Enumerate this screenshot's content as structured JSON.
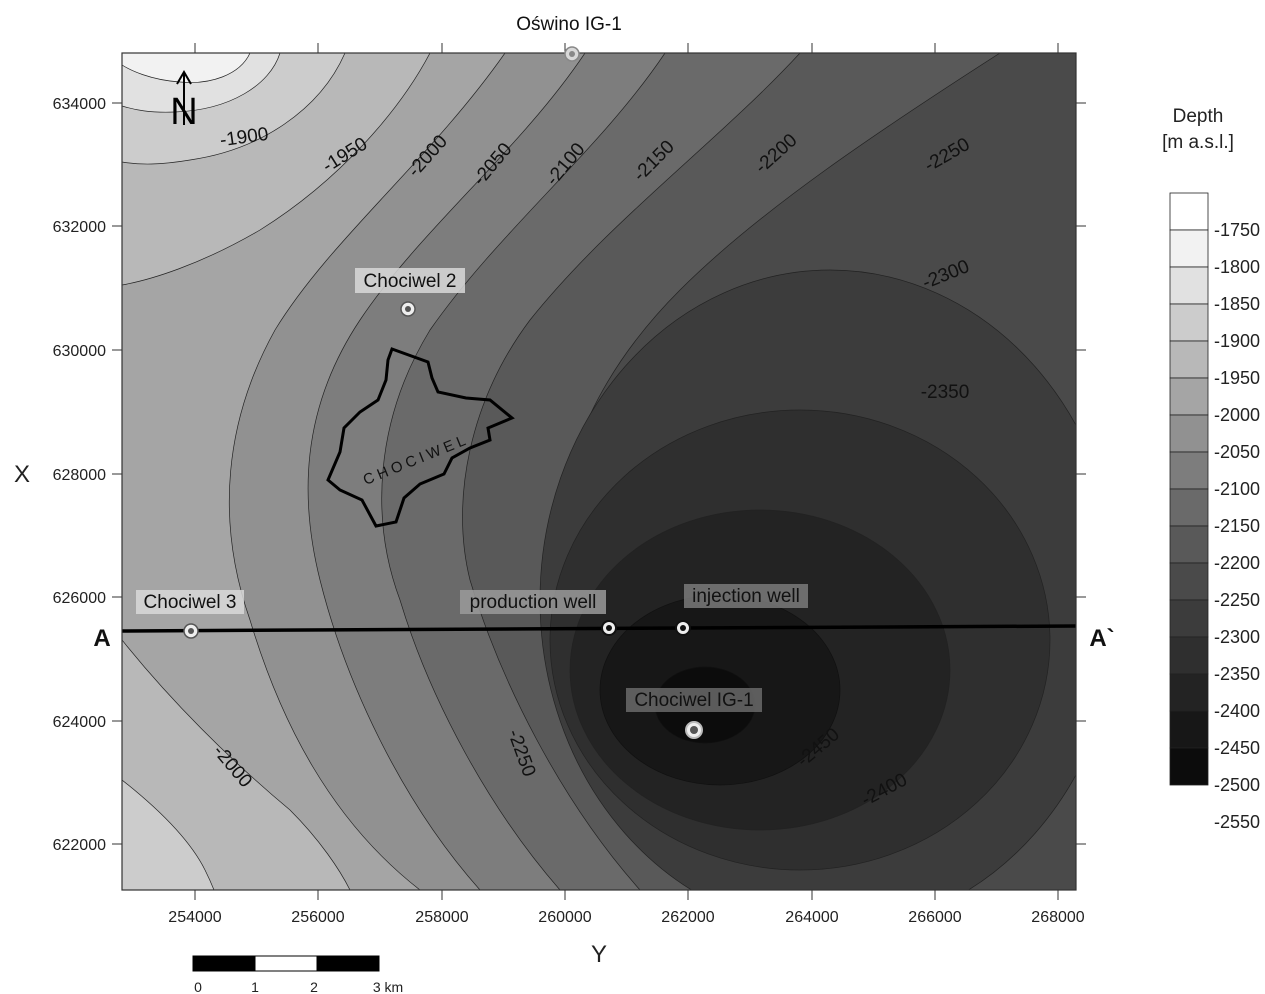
{
  "map": {
    "x_axis_title": "Y",
    "y_axis_title": "X",
    "x_ticks": [
      "254000",
      "256000",
      "258000",
      "260000",
      "262000",
      "264000",
      "266000",
      "268000"
    ],
    "y_ticks": [
      "634000",
      "632000",
      "630000",
      "628000",
      "626000",
      "624000",
      "622000"
    ],
    "contour_labels": [
      "-1900",
      "-1950",
      "-2000",
      "-2050",
      "-2100",
      "-2150",
      "-2200",
      "-2250",
      "-2300",
      "-2350",
      "-2000",
      "-2250",
      "-2450",
      "-2400"
    ],
    "wells": [
      "Oświno IG-1",
      "Chociwel 2",
      "Chociwel 3",
      "production well",
      "injection well",
      "Chociwel IG-1"
    ],
    "town": "CHOCIWEL",
    "section_start": "A",
    "section_end": "A`",
    "north_label": "N"
  },
  "legend": {
    "title_line1": "Depth",
    "title_line2": "[m a.s.l.]",
    "levels": [
      "-1750",
      "-1800",
      "-1850",
      "-1900",
      "-1950",
      "-2000",
      "-2050",
      "-2100",
      "-2150",
      "-2200",
      "-2250",
      "-2300",
      "-2350",
      "-2400",
      "-2450",
      "-2500",
      "-2550"
    ],
    "colors": [
      "#ffffff",
      "#f2f2f2",
      "#e1e1e1",
      "#cccccc",
      "#b8b8b8",
      "#a5a5a5",
      "#919191",
      "#7d7d7d",
      "#6a6a6a",
      "#595959",
      "#4a4a4a",
      "#3c3c3c",
      "#2f2f2f",
      "#232323",
      "#171717",
      "#0c0c0c"
    ]
  },
  "scalebar": {
    "labels": [
      "0",
      "1",
      "2",
      "3 km"
    ]
  }
}
